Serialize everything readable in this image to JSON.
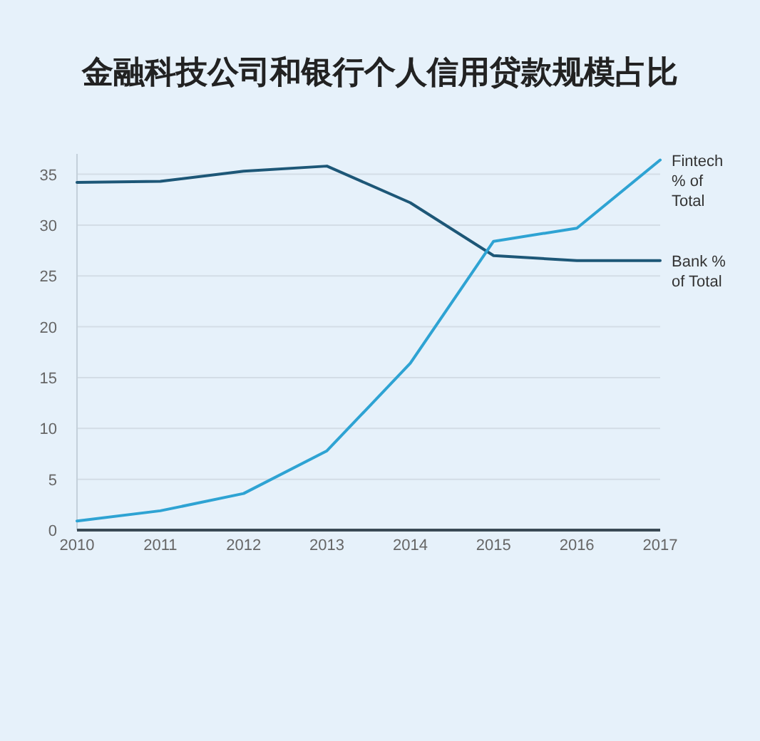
{
  "chart_data": {
    "type": "line",
    "title": "金融科技公司和银行个人信用贷款规模占比",
    "x": [
      2010,
      2011,
      2012,
      2013,
      2014,
      2015,
      2016,
      2017
    ],
    "xlim": [
      2010,
      2017
    ],
    "xticks": [
      2010,
      2011,
      2012,
      2013,
      2014,
      2015,
      2016,
      2017
    ],
    "ylim": [
      0,
      37
    ],
    "yticks": [
      0,
      5,
      10,
      15,
      20,
      25,
      30,
      35
    ],
    "grid": "y",
    "series": [
      {
        "name": "Bank % of Total",
        "color": "#1d5777",
        "values": [
          34.2,
          34.3,
          35.3,
          35.8,
          32.2,
          27.0,
          26.5,
          26.5
        ]
      },
      {
        "name": "Fintech % of Total",
        "color": "#2ea3d3",
        "values": [
          0.9,
          1.9,
          3.6,
          7.8,
          16.4,
          28.4,
          29.7,
          36.4
        ]
      }
    ]
  }
}
